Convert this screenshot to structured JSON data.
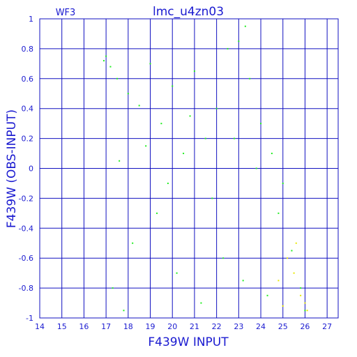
{
  "chart_data": {
    "type": "scatter",
    "title": "lmc_u4zn03",
    "subtitle": "WF3",
    "xlabel": "F439W INPUT",
    "ylabel": "F439W (OBS-INPUT)",
    "xlim": [
      14,
      27.5
    ],
    "ylim": [
      -1,
      1
    ],
    "x_ticks": [
      "14",
      "15",
      "16",
      "17",
      "18",
      "19",
      "20",
      "21",
      "22",
      "23",
      "24",
      "25",
      "26",
      "27"
    ],
    "y_ticks": [
      "1",
      "0.8",
      "0.6",
      "0.4",
      "0.2",
      "0",
      "-0.2",
      "-0.4",
      "-0.6",
      "-0.8",
      "-1"
    ],
    "grid": true,
    "series": [
      {
        "color": "#22ee22",
        "points": [
          [
            17.0,
            0.75
          ],
          [
            17.2,
            0.68
          ],
          [
            16.9,
            0.72
          ],
          [
            17.5,
            0.6
          ],
          [
            18.0,
            0.5
          ],
          [
            18.5,
            0.42
          ],
          [
            19.0,
            0.7
          ],
          [
            19.5,
            0.3
          ],
          [
            20.0,
            0.55
          ],
          [
            20.5,
            0.1
          ],
          [
            21.0,
            0.65
          ],
          [
            21.5,
            0.2
          ],
          [
            22.0,
            0.4
          ],
          [
            22.5,
            0.8
          ],
          [
            23.0,
            0.85
          ],
          [
            23.3,
            0.95
          ],
          [
            23.5,
            0.6
          ],
          [
            24.0,
            0.3
          ],
          [
            24.5,
            0.1
          ],
          [
            25.0,
            -0.1
          ],
          [
            17.3,
            -0.8
          ],
          [
            17.8,
            -0.95
          ],
          [
            18.2,
            -0.5
          ],
          [
            19.3,
            -0.3
          ],
          [
            20.2,
            -0.7
          ],
          [
            21.3,
            -0.9
          ],
          [
            22.3,
            -0.6
          ],
          [
            23.2,
            -0.75
          ],
          [
            24.3,
            -0.85
          ],
          [
            25.4,
            -0.55
          ],
          [
            22.8,
            0.2
          ],
          [
            23.8,
            0.0
          ],
          [
            24.8,
            -0.3
          ],
          [
            25.8,
            -0.8
          ],
          [
            26.0,
            -0.95
          ],
          [
            21.8,
            -0.2
          ],
          [
            20.8,
            0.35
          ],
          [
            19.8,
            -0.1
          ],
          [
            18.8,
            0.15
          ],
          [
            17.6,
            0.05
          ]
        ]
      },
      {
        "color": "#e8e800",
        "points": [
          [
            25.2,
            -0.6
          ],
          [
            25.5,
            -0.7
          ],
          [
            25.8,
            -0.85
          ],
          [
            26.0,
            -0.9
          ],
          [
            26.1,
            -0.95
          ],
          [
            24.8,
            -0.75
          ],
          [
            25.0,
            -0.92
          ],
          [
            25.6,
            -0.5
          ]
        ]
      }
    ]
  }
}
